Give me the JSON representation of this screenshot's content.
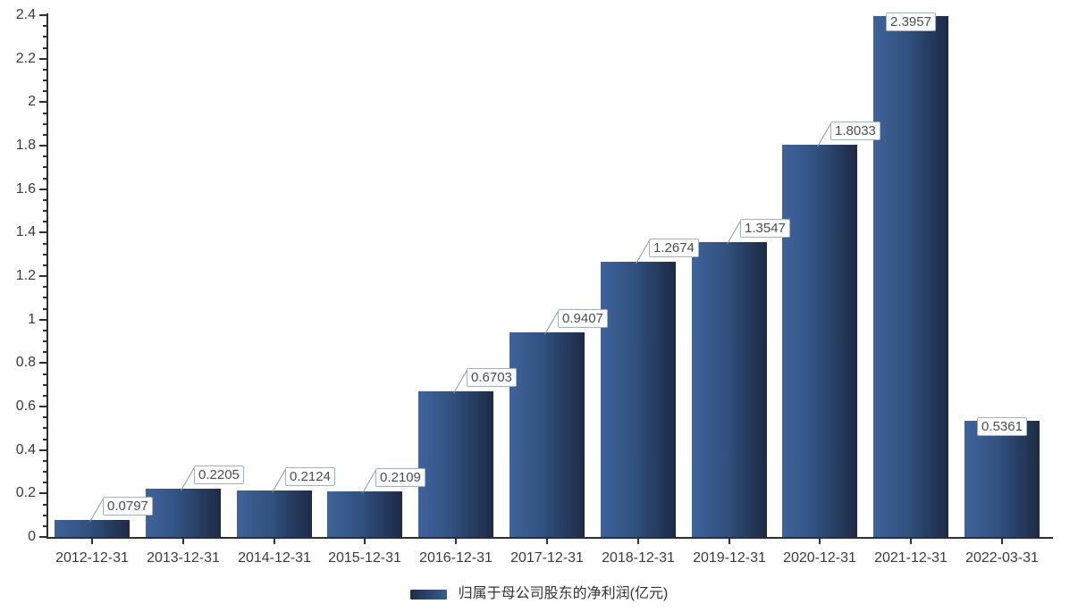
{
  "chart_data": {
    "type": "bar",
    "title": "",
    "categories": [
      "2012-12-31",
      "2013-12-31",
      "2014-12-31",
      "2015-12-31",
      "2016-12-31",
      "2017-12-31",
      "2018-12-31",
      "2019-12-31",
      "2020-12-31",
      "2021-12-31",
      "2022-03-31"
    ],
    "series": [
      {
        "name": "归属于母公司股东的净利润(亿元)",
        "values": [
          0.0797,
          0.2205,
          0.2124,
          0.2109,
          0.6703,
          0.9407,
          1.2674,
          1.3547,
          1.8033,
          2.3957,
          0.5361
        ]
      }
    ],
    "value_labels": [
      "0.0797",
      "0.2205",
      "0.2124",
      "0.2109",
      "0.6703",
      "0.9407",
      "1.2674",
      "1.3547",
      "1.8033",
      "2.3957",
      "0.5361"
    ],
    "xlabel": "",
    "ylabel": "",
    "ylim": [
      0,
      2.4
    ],
    "y_tick_step": 0.2,
    "y_minor_tick_step": 0.05,
    "grid": false,
    "legend_position": "bottom",
    "colors": {
      "bar_gradient_left": "#3f639b",
      "bar_gradient_mid": "#31517f",
      "bar_gradient_right": "#1d2a45",
      "legend_gradient_left": "#1f2c49",
      "legend_gradient_right": "#3a5c92",
      "axis": "#2f2f2f",
      "tick_label": "#3a3a3a",
      "value_box_border": "#9fb2c4",
      "value_box_text": "#474d52",
      "leader_line": "#8a97a5",
      "legend_text": "#333333",
      "background": "#ffffff"
    }
  }
}
